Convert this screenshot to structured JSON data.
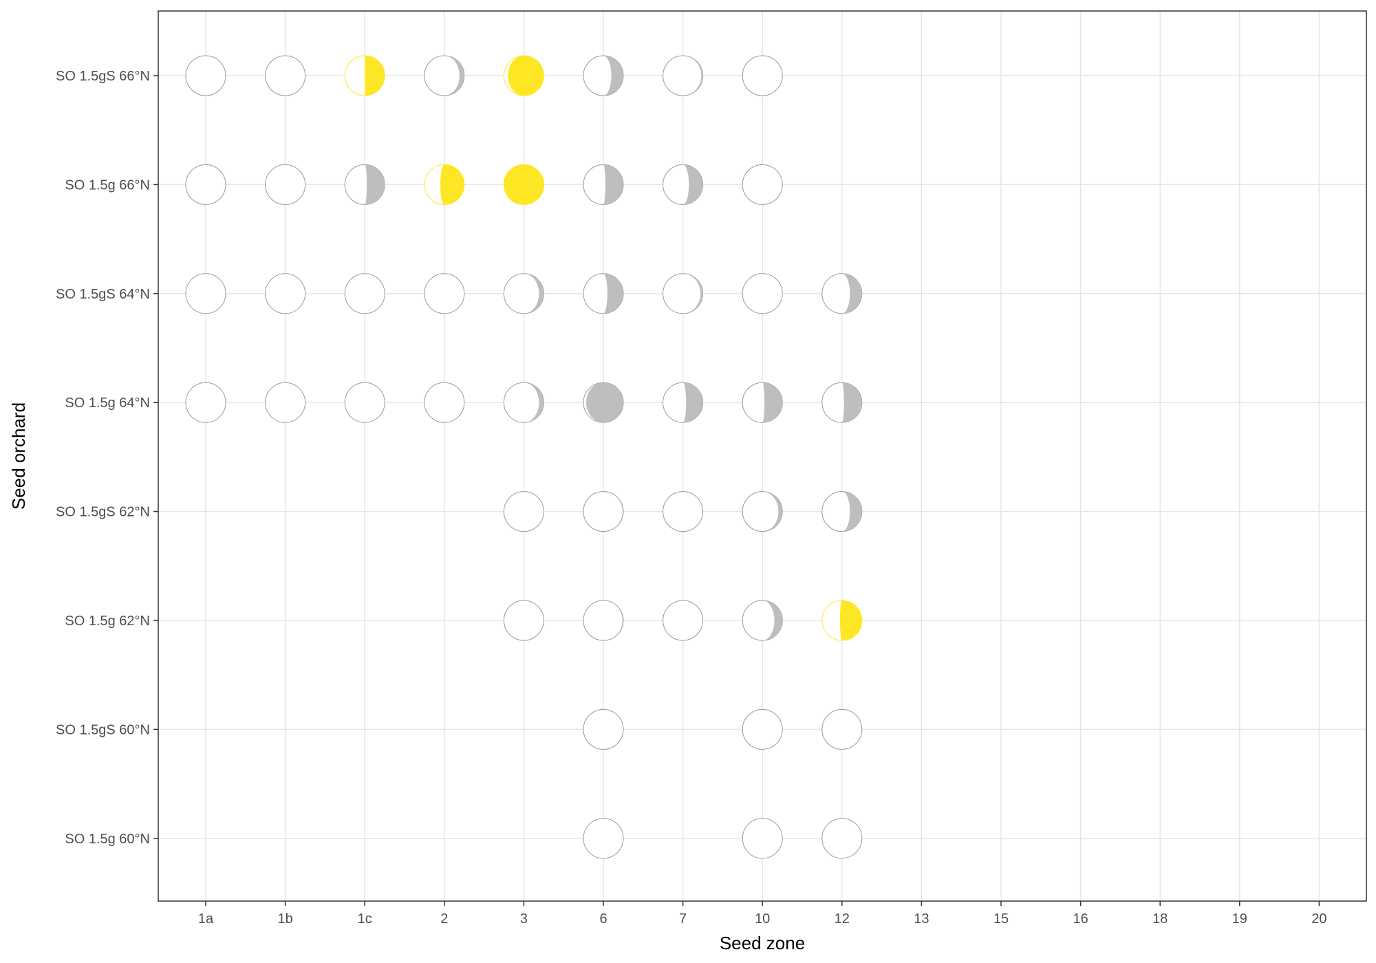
{
  "chart_data": {
    "type": "scatter",
    "xlabel": "Seed zone",
    "ylabel": "Seed orchard",
    "x_categories": [
      "1a",
      "1b",
      "1c",
      "2",
      "3",
      "6",
      "7",
      "10",
      "12",
      "13",
      "15",
      "16",
      "18",
      "19",
      "20"
    ],
    "y_categories": [
      "SO 1.5gS 66°N",
      "SO 1.5g 66°N",
      "SO 1.5gS 64°N",
      "SO 1.5g 64°N",
      "SO 1.5gS 62°N",
      "SO 1.5g 62°N",
      "SO 1.5gS 60°N",
      "SO 1.5g 60°N"
    ],
    "grid": true,
    "marker": "moon",
    "colors": {
      "highlight": "#fde725",
      "other": "#bebebe",
      "outline": "#999999",
      "grid": "#e5e5e5",
      "panel_border": "#333333"
    },
    "points": [
      {
        "y": "SO 1.5gS 66°N",
        "x": "1a",
        "fraction": 0.0,
        "color": "other"
      },
      {
        "y": "SO 1.5gS 66°N",
        "x": "1b",
        "fraction": 0.0,
        "color": "other"
      },
      {
        "y": "SO 1.5gS 66°N",
        "x": "1c",
        "fraction": 0.5,
        "color": "highlight"
      },
      {
        "y": "SO 1.5gS 66°N",
        "x": "2",
        "fraction": 0.12,
        "color": "other"
      },
      {
        "y": "SO 1.5gS 66°N",
        "x": "3",
        "fraction": 0.9,
        "color": "highlight"
      },
      {
        "y": "SO 1.5gS 66°N",
        "x": "6",
        "fraction": 0.3,
        "color": "other"
      },
      {
        "y": "SO 1.5gS 66°N",
        "x": "7",
        "fraction": 0.04,
        "color": "other"
      },
      {
        "y": "SO 1.5gS 66°N",
        "x": "10",
        "fraction": 0.0,
        "color": "other"
      },
      {
        "y": "SO 1.5g 66°N",
        "x": "1a",
        "fraction": 0.0,
        "color": "other"
      },
      {
        "y": "SO 1.5g 66°N",
        "x": "1b",
        "fraction": 0.0,
        "color": "other"
      },
      {
        "y": "SO 1.5g 66°N",
        "x": "1c",
        "fraction": 0.45,
        "color": "other"
      },
      {
        "y": "SO 1.5g 66°N",
        "x": "2",
        "fraction": 0.6,
        "color": "highlight"
      },
      {
        "y": "SO 1.5g 66°N",
        "x": "3",
        "fraction": 1.0,
        "color": "highlight"
      },
      {
        "y": "SO 1.5g 66°N",
        "x": "6",
        "fraction": 0.45,
        "color": "other"
      },
      {
        "y": "SO 1.5g 66°N",
        "x": "7",
        "fraction": 0.35,
        "color": "other"
      },
      {
        "y": "SO 1.5g 66°N",
        "x": "10",
        "fraction": 0.0,
        "color": "other"
      },
      {
        "y": "SO 1.5gS 64°N",
        "x": "1a",
        "fraction": 0.0,
        "color": "other"
      },
      {
        "y": "SO 1.5gS 64°N",
        "x": "1b",
        "fraction": 0.0,
        "color": "other"
      },
      {
        "y": "SO 1.5gS 64°N",
        "x": "1c",
        "fraction": 0.0,
        "color": "other"
      },
      {
        "y": "SO 1.5gS 64°N",
        "x": "2",
        "fraction": 0.0,
        "color": "other"
      },
      {
        "y": "SO 1.5gS 64°N",
        "x": "3",
        "fraction": 0.12,
        "color": "other"
      },
      {
        "y": "SO 1.5gS 64°N",
        "x": "6",
        "fraction": 0.4,
        "color": "other"
      },
      {
        "y": "SO 1.5gS 64°N",
        "x": "7",
        "fraction": 0.06,
        "color": "other"
      },
      {
        "y": "SO 1.5gS 64°N",
        "x": "10",
        "fraction": 0.0,
        "color": "other"
      },
      {
        "y": "SO 1.5gS 64°N",
        "x": "12",
        "fraction": 0.3,
        "color": "other"
      },
      {
        "y": "SO 1.5g 64°N",
        "x": "1a",
        "fraction": 0.0,
        "color": "other"
      },
      {
        "y": "SO 1.5g 64°N",
        "x": "1b",
        "fraction": 0.0,
        "color": "other"
      },
      {
        "y": "SO 1.5g 64°N",
        "x": "1c",
        "fraction": 0.0,
        "color": "other"
      },
      {
        "y": "SO 1.5g 64°N",
        "x": "2",
        "fraction": 0.0,
        "color": "other"
      },
      {
        "y": "SO 1.5g 64°N",
        "x": "3",
        "fraction": 0.12,
        "color": "other"
      },
      {
        "y": "SO 1.5g 64°N",
        "x": "6",
        "fraction": 0.93,
        "color": "other"
      },
      {
        "y": "SO 1.5g 64°N",
        "x": "7",
        "fraction": 0.42,
        "color": "other"
      },
      {
        "y": "SO 1.5g 64°N",
        "x": "10",
        "fraction": 0.45,
        "color": "other"
      },
      {
        "y": "SO 1.5g 64°N",
        "x": "12",
        "fraction": 0.45,
        "color": "other"
      },
      {
        "y": "SO 1.5gS 62°N",
        "x": "3",
        "fraction": 0.0,
        "color": "other"
      },
      {
        "y": "SO 1.5gS 62°N",
        "x": "6",
        "fraction": 0.02,
        "color": "other"
      },
      {
        "y": "SO 1.5gS 62°N",
        "x": "7",
        "fraction": 0.0,
        "color": "other"
      },
      {
        "y": "SO 1.5gS 62°N",
        "x": "10",
        "fraction": 0.1,
        "color": "other"
      },
      {
        "y": "SO 1.5gS 62°N",
        "x": "12",
        "fraction": 0.3,
        "color": "other"
      },
      {
        "y": "SO 1.5g 62°N",
        "x": "3",
        "fraction": 0.0,
        "color": "other"
      },
      {
        "y": "SO 1.5g 62°N",
        "x": "6",
        "fraction": 0.02,
        "color": "other"
      },
      {
        "y": "SO 1.5g 62°N",
        "x": "7",
        "fraction": 0.0,
        "color": "other"
      },
      {
        "y": "SO 1.5g 62°N",
        "x": "10",
        "fraction": 0.2,
        "color": "other"
      },
      {
        "y": "SO 1.5g 62°N",
        "x": "12",
        "fraction": 0.55,
        "color": "highlight"
      },
      {
        "y": "SO 1.5gS 60°N",
        "x": "6",
        "fraction": 0.0,
        "color": "other"
      },
      {
        "y": "SO 1.5gS 60°N",
        "x": "10",
        "fraction": 0.0,
        "color": "other"
      },
      {
        "y": "SO 1.5gS 60°N",
        "x": "12",
        "fraction": 0.0,
        "color": "other"
      },
      {
        "y": "SO 1.5g 60°N",
        "x": "6",
        "fraction": 0.0,
        "color": "other"
      },
      {
        "y": "SO 1.5g 60°N",
        "x": "10",
        "fraction": 0.0,
        "color": "other"
      },
      {
        "y": "SO 1.5g 60°N",
        "x": "12",
        "fraction": 0.0,
        "color": "other"
      }
    ]
  }
}
